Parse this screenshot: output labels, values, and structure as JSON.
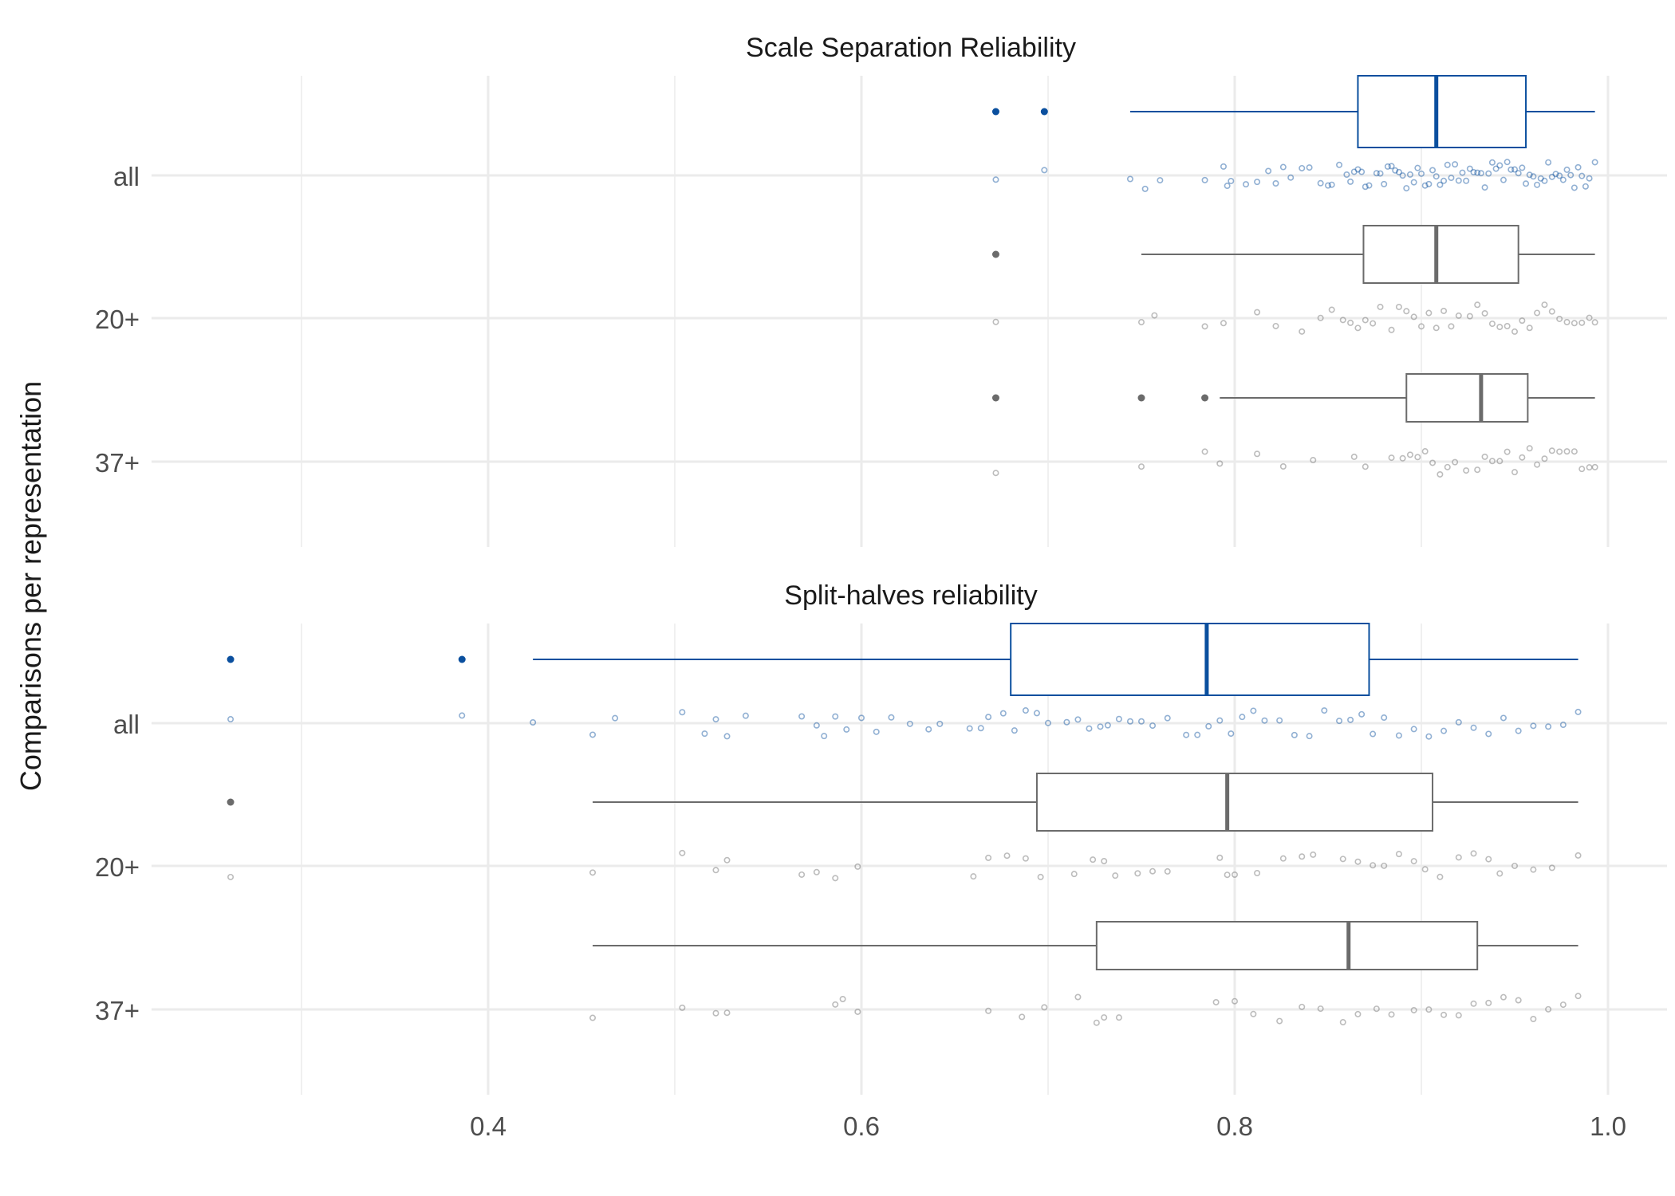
{
  "chart_data": {
    "type": "boxplot",
    "ylabel": "Comparisons per representation",
    "xlabel": "",
    "x_ticks": [
      "0.4",
      "0.6",
      "0.8",
      "1.0"
    ],
    "x_tick_values": [
      0.4,
      0.6,
      0.8,
      1.0
    ],
    "xlim": [
      0.225,
      1.06
    ],
    "categories": [
      "all",
      "20+",
      "37+"
    ],
    "colors": {
      "highlight": "#0a4f9e",
      "default": "#6b6b6b",
      "grid": "#ebebeb"
    },
    "panels": [
      {
        "title": "Scale Separation Reliability",
        "groups": [
          {
            "category": "all",
            "highlight": true,
            "box": {
              "q1": 0.866,
              "median": 0.908,
              "q3": 0.956,
              "whisker_low": 0.744,
              "whisker_high": 0.993
            },
            "outliers": [
              0.672,
              0.698
            ],
            "points": [
              0.672,
              0.698,
              0.744,
              0.752,
              0.76,
              0.784,
              0.794,
              0.796,
              0.798,
              0.806,
              0.812,
              0.818,
              0.822,
              0.826,
              0.83,
              0.836,
              0.84,
              0.846,
              0.85,
              0.852,
              0.856,
              0.86,
              0.862,
              0.864,
              0.866,
              0.868,
              0.87,
              0.872,
              0.876,
              0.878,
              0.88,
              0.882,
              0.884,
              0.886,
              0.888,
              0.89,
              0.892,
              0.894,
              0.896,
              0.898,
              0.9,
              0.902,
              0.904,
              0.906,
              0.908,
              0.91,
              0.912,
              0.914,
              0.916,
              0.918,
              0.92,
              0.922,
              0.924,
              0.926,
              0.928,
              0.93,
              0.932,
              0.934,
              0.936,
              0.938,
              0.94,
              0.942,
              0.944,
              0.946,
              0.948,
              0.95,
              0.952,
              0.954,
              0.956,
              0.958,
              0.96,
              0.962,
              0.964,
              0.966,
              0.968,
              0.97,
              0.972,
              0.974,
              0.976,
              0.978,
              0.98,
              0.982,
              0.984,
              0.986,
              0.988,
              0.99,
              0.993
            ]
          },
          {
            "category": "20+",
            "highlight": false,
            "box": {
              "q1": 0.869,
              "median": 0.908,
              "q3": 0.952,
              "whisker_low": 0.75,
              "whisker_high": 0.993
            },
            "outliers": [
              0.672
            ],
            "points": [
              0.672,
              0.75,
              0.757,
              0.784,
              0.794,
              0.812,
              0.822,
              0.836,
              0.846,
              0.852,
              0.858,
              0.862,
              0.866,
              0.87,
              0.874,
              0.878,
              0.884,
              0.888,
              0.892,
              0.896,
              0.9,
              0.904,
              0.908,
              0.912,
              0.916,
              0.92,
              0.926,
              0.93,
              0.934,
              0.938,
              0.942,
              0.946,
              0.95,
              0.954,
              0.958,
              0.962,
              0.966,
              0.97,
              0.974,
              0.978,
              0.982,
              0.986,
              0.99,
              0.993
            ]
          },
          {
            "category": "37+",
            "highlight": false,
            "box": {
              "q1": 0.892,
              "median": 0.932,
              "q3": 0.957,
              "whisker_low": 0.792,
              "whisker_high": 0.993
            },
            "outliers": [
              0.672,
              0.75,
              0.784
            ],
            "points": [
              0.672,
              0.75,
              0.784,
              0.792,
              0.812,
              0.826,
              0.842,
              0.864,
              0.87,
              0.884,
              0.89,
              0.894,
              0.898,
              0.902,
              0.906,
              0.91,
              0.914,
              0.918,
              0.924,
              0.93,
              0.934,
              0.938,
              0.942,
              0.946,
              0.95,
              0.954,
              0.958,
              0.962,
              0.966,
              0.97,
              0.974,
              0.978,
              0.982,
              0.986,
              0.99,
              0.993
            ]
          }
        ]
      },
      {
        "title": "Split-halves reliability",
        "groups": [
          {
            "category": "all",
            "highlight": true,
            "box": {
              "q1": 0.68,
              "median": 0.785,
              "q3": 0.872,
              "whisker_low": 0.424,
              "whisker_high": 0.984
            },
            "outliers": [
              0.262,
              0.386
            ],
            "points": [
              0.262,
              0.386,
              0.424,
              0.456,
              0.468,
              0.504,
              0.516,
              0.522,
              0.528,
              0.538,
              0.568,
              0.576,
              0.58,
              0.586,
              0.592,
              0.6,
              0.608,
              0.616,
              0.626,
              0.636,
              0.642,
              0.658,
              0.664,
              0.668,
              0.676,
              0.682,
              0.688,
              0.694,
              0.7,
              0.71,
              0.716,
              0.722,
              0.728,
              0.732,
              0.738,
              0.744,
              0.75,
              0.756,
              0.764,
              0.774,
              0.78,
              0.786,
              0.792,
              0.798,
              0.804,
              0.81,
              0.816,
              0.824,
              0.832,
              0.84,
              0.848,
              0.856,
              0.862,
              0.868,
              0.874,
              0.88,
              0.888,
              0.896,
              0.904,
              0.912,
              0.92,
              0.928,
              0.936,
              0.944,
              0.952,
              0.96,
              0.968,
              0.976,
              0.984
            ]
          },
          {
            "category": "20+",
            "highlight": false,
            "box": {
              "q1": 0.694,
              "median": 0.796,
              "q3": 0.906,
              "whisker_low": 0.456,
              "whisker_high": 0.984
            },
            "outliers": [
              0.262
            ],
            "points": [
              0.262,
              0.456,
              0.504,
              0.522,
              0.528,
              0.568,
              0.576,
              0.586,
              0.598,
              0.66,
              0.668,
              0.678,
              0.688,
              0.696,
              0.714,
              0.724,
              0.73,
              0.736,
              0.748,
              0.756,
              0.764,
              0.792,
              0.796,
              0.8,
              0.812,
              0.826,
              0.836,
              0.842,
              0.858,
              0.866,
              0.874,
              0.88,
              0.888,
              0.896,
              0.902,
              0.91,
              0.92,
              0.928,
              0.936,
              0.942,
              0.95,
              0.96,
              0.97,
              0.984
            ]
          },
          {
            "category": "37+",
            "highlight": false,
            "box": {
              "q1": 0.726,
              "median": 0.861,
              "q3": 0.93,
              "whisker_low": 0.456,
              "whisker_high": 0.984
            },
            "outliers": [],
            "points": [
              0.456,
              0.504,
              0.522,
              0.528,
              0.586,
              0.59,
              0.598,
              0.668,
              0.686,
              0.698,
              0.716,
              0.726,
              0.73,
              0.738,
              0.79,
              0.8,
              0.81,
              0.824,
              0.836,
              0.846,
              0.858,
              0.866,
              0.876,
              0.884,
              0.896,
              0.904,
              0.912,
              0.92,
              0.928,
              0.936,
              0.944,
              0.952,
              0.96,
              0.968,
              0.976,
              0.984
            ]
          }
        ]
      }
    ]
  }
}
